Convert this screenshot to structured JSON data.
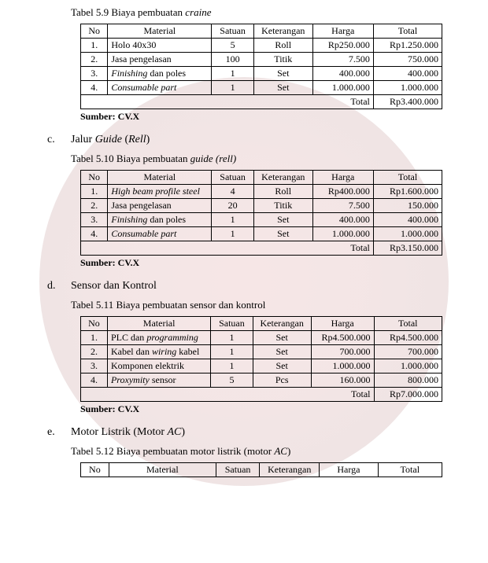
{
  "headers": {
    "no": "No",
    "material": "Material",
    "satuan": "Satuan",
    "keterangan": "Keterangan",
    "harga": "Harga",
    "total": "Total"
  },
  "sumber": "Sumber: CV.X",
  "total_label": "Total",
  "t59": {
    "caption_a": "Tabel 5.9 Biaya pembuatan ",
    "caption_b": "craine",
    "rows": [
      {
        "no": "1.",
        "mat_a": "Holo 40x30",
        "mat_b": "",
        "sat": "5",
        "ket": "Roll",
        "harga": "Rp250.000",
        "total": "Rp1.250.000"
      },
      {
        "no": "2.",
        "mat_a": "Jasa pengelasan",
        "mat_b": "",
        "sat": "100",
        "ket": "Titik",
        "harga": "7.500",
        "total": "750.000"
      },
      {
        "no": "3.",
        "mat_a": "",
        "mat_b": "Finishing",
        "mat_c": " dan poles",
        "sat": "1",
        "ket": "Set",
        "harga": "400.000",
        "total": "400.000"
      },
      {
        "no": "4.",
        "mat_a": "",
        "mat_b": "Consumable part",
        "mat_c": "",
        "sat": "1",
        "ket": "Set",
        "harga": "1.000.000",
        "total": "1.000.000"
      }
    ],
    "grand": "Rp3.400.000"
  },
  "sec_c": {
    "letter": "c.",
    "title_a": "Jalur ",
    "title_b": "Guide",
    "title_c": " (",
    "title_d": "Rell",
    "title_e": ")"
  },
  "t510": {
    "caption_a": "Tabel 5.10 Biaya pembuatan ",
    "caption_b": "guide (rell)",
    "rows": [
      {
        "no": "1.",
        "mat_a": "",
        "mat_b": "High beam profile steel",
        "mat_c": "",
        "sat": "4",
        "ket": "Roll",
        "harga": "Rp400.000",
        "total": "Rp1.600.000"
      },
      {
        "no": "2.",
        "mat_a": "Jasa pengelasan",
        "mat_b": "",
        "mat_c": "",
        "sat": "20",
        "ket": "Titik",
        "harga": "7.500",
        "total": "150.000"
      },
      {
        "no": "3.",
        "mat_a": "",
        "mat_b": "Finishing",
        "mat_c": " dan poles",
        "sat": "1",
        "ket": "Set",
        "harga": "400.000",
        "total": "400.000"
      },
      {
        "no": "4.",
        "mat_a": "",
        "mat_b": "Consumable part",
        "mat_c": "",
        "sat": "1",
        "ket": "Set",
        "harga": "1.000.000",
        "total": "1.000.000"
      }
    ],
    "grand": "Rp3.150.000"
  },
  "sec_d": {
    "letter": "d.",
    "title": "Sensor dan Kontrol"
  },
  "t511": {
    "caption": "Tabel 5.11 Biaya pembuatan sensor dan kontrol",
    "rows": [
      {
        "no": "1.",
        "mat_a": "PLC dan ",
        "mat_b": "programming",
        "mat_c": "",
        "sat": "1",
        "ket": "Set",
        "harga": "Rp4.500.000",
        "total": "Rp4.500.000"
      },
      {
        "no": "2.",
        "mat_a": "Kabel dan ",
        "mat_b": "wiring",
        "mat_c": " kabel",
        "sat": "1",
        "ket": "Set",
        "harga": "700.000",
        "total": "700.000"
      },
      {
        "no": "3.",
        "mat_a": "Komponen elektrik",
        "mat_b": "",
        "mat_c": "",
        "sat": "1",
        "ket": "Set",
        "harga": "1.000.000",
        "total": "1.000.000"
      },
      {
        "no": "4.",
        "mat_a": "",
        "mat_b": "Proxymity",
        "mat_c": " sensor",
        "sat": "5",
        "ket": "Pcs",
        "harga": "160.000",
        "total": "800.000"
      }
    ],
    "grand": "Rp7.000.000"
  },
  "sec_e": {
    "letter": "e.",
    "title_a": "Motor Listrik (Motor ",
    "title_b": "AC",
    "title_c": ")"
  },
  "t512": {
    "caption_a": "Tabel 5.12 Biaya pembuatan motor listrik (motor ",
    "caption_b": "AC",
    "caption_c": ")"
  }
}
